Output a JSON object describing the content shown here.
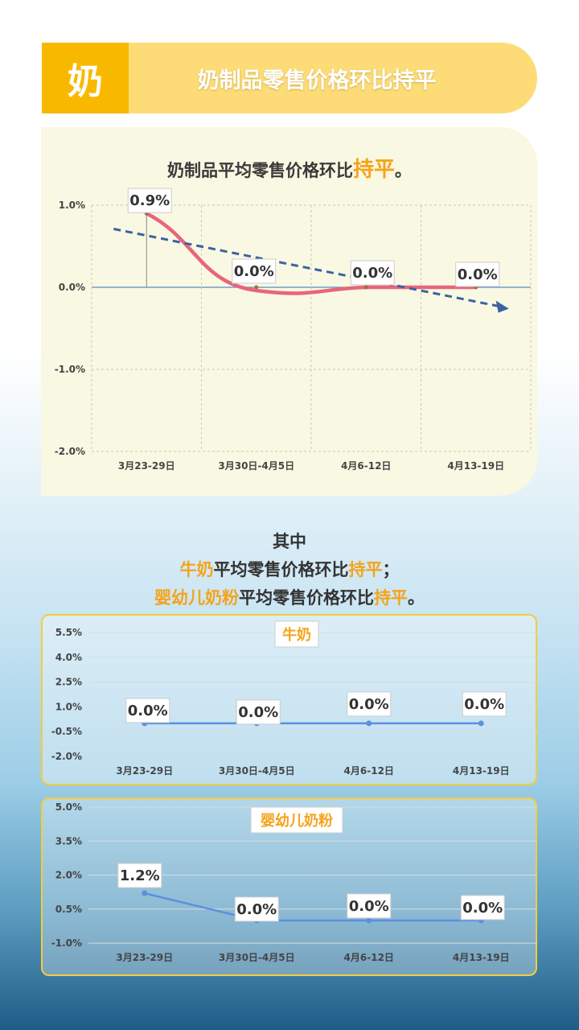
{
  "header": {
    "badge": "奶",
    "title": "奶制品零售价格环比持平"
  },
  "panel1": {
    "title_prefix": "奶制品平均零售价格环比",
    "title_highlight": "持平",
    "title_suffix": "。"
  },
  "summary": {
    "line1": "其中",
    "line2_a": "牛奶",
    "line2_b": "平均零售价格环比",
    "line2_c": "持平",
    "line2_d": "；",
    "line3_a": "婴幼儿奶粉",
    "line3_b": "平均零售价格环比",
    "line3_c": "持平",
    "line3_d": "。"
  },
  "colors": {
    "main_line": "#e8657a",
    "trend": "#3d62a3",
    "sub_line": "#5b8fe0",
    "highlight": "#f5a31a",
    "badge": "#f9b800"
  },
  "chart_data": [
    {
      "type": "line",
      "categories": [
        "3月23-29日",
        "3月30日-4月5日",
        "4月6-12日",
        "4月13-19日"
      ],
      "series": [
        {
          "values": [
            0.9,
            0.0,
            0.0,
            0.0
          ]
        }
      ],
      "data_labels": [
        "0.9%",
        "0.0%",
        "0.0%",
        "0.0%"
      ],
      "ylim": [
        -2.0,
        1.0
      ],
      "yticks": [
        "1.0%",
        "0.0%",
        "-1.0%",
        "-2.0%"
      ],
      "trendline": true,
      "grid": true
    },
    {
      "type": "line",
      "title": "牛奶",
      "categories": [
        "3月23-29日",
        "3月30日-4月5日",
        "4月6-12日",
        "4月13-19日"
      ],
      "series": [
        {
          "values": [
            0.0,
            0.0,
            0.0,
            0.0
          ]
        }
      ],
      "data_labels": [
        "0.0%",
        "0.0%",
        "0.0%",
        "0.0%"
      ],
      "yticks": [
        "5.5%",
        "4.0%",
        "2.5%",
        "1.0%",
        "-0.5%",
        "-2.0%"
      ],
      "grid": true
    },
    {
      "type": "line",
      "title": "婴幼儿奶粉",
      "categories": [
        "3月23-29日",
        "3月30日-4月5日",
        "4月6-12日",
        "4月13-19日"
      ],
      "series": [
        {
          "values": [
            1.2,
            0.0,
            0.0,
            0.0
          ]
        }
      ],
      "data_labels": [
        "1.2%",
        "0.0%",
        "0.0%",
        "0.0%"
      ],
      "yticks": [
        "5.0%",
        "3.5%",
        "2.0%",
        "0.5%",
        "-1.0%"
      ],
      "grid": true
    }
  ]
}
